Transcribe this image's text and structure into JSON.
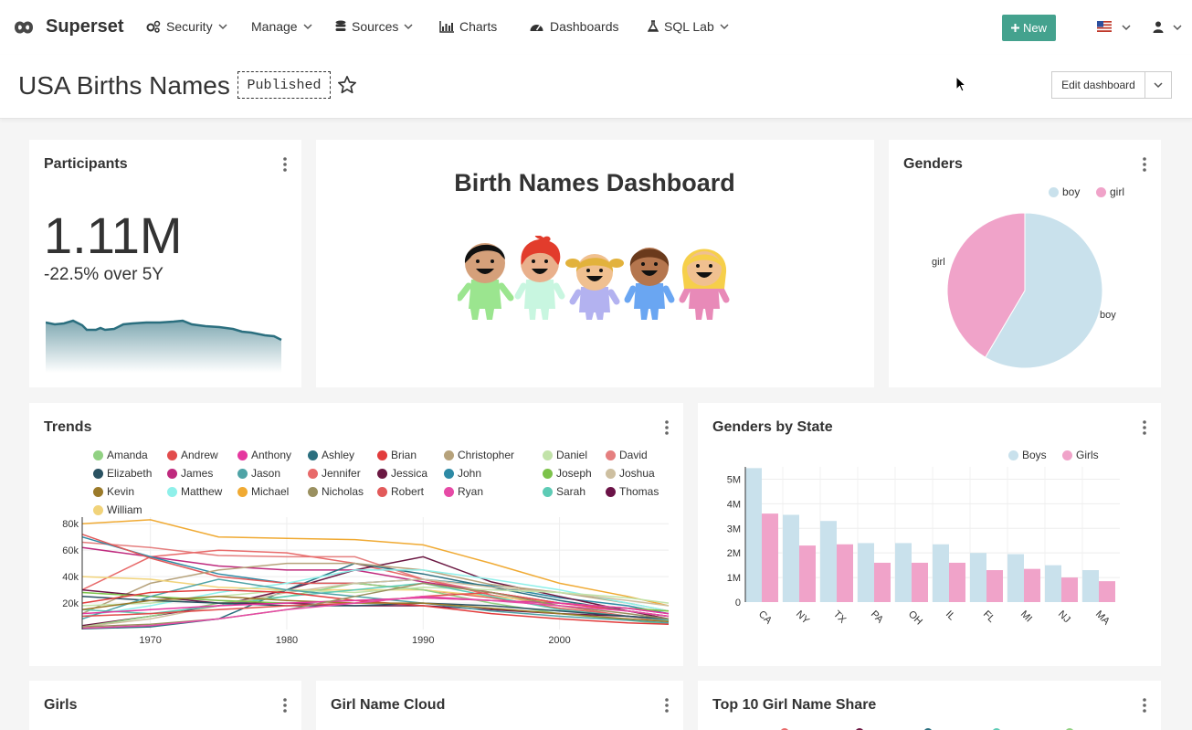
{
  "navbar": {
    "brand": "Superset",
    "items": [
      {
        "label": "Security",
        "icon": "gears-icon",
        "dropdown": true
      },
      {
        "label": "Manage",
        "icon": "",
        "dropdown": true
      },
      {
        "label": "Sources",
        "icon": "database-icon",
        "dropdown": true
      },
      {
        "label": "Charts",
        "icon": "bar-chart-icon",
        "dropdown": false
      },
      {
        "label": "Dashboards",
        "icon": "dashboard-icon",
        "dropdown": false
      },
      {
        "label": "SQL Lab",
        "icon": "flask-icon",
        "dropdown": true
      }
    ],
    "new_label": "New",
    "accent": "#44a28e"
  },
  "header": {
    "title": "USA Births Names",
    "status": "Published",
    "edit_label": "Edit dashboard"
  },
  "participants": {
    "title": "Participants",
    "value": "1.11M",
    "delta": "-22.5% over 5Y"
  },
  "markdown": {
    "title": "Birth Names Dashboard"
  },
  "genders": {
    "title": "Genders",
    "legend": [
      {
        "label": "boy",
        "color": "#c9e1ec"
      },
      {
        "label": "girl",
        "color": "#f0a3c9"
      }
    ],
    "slice_labels": {
      "boy": "boy",
      "girl": "girl"
    }
  },
  "trends": {
    "title": "Trends",
    "legend": [
      {
        "label": "Amanda",
        "color": "#91d183"
      },
      {
        "label": "Andrew",
        "color": "#e24c4c"
      },
      {
        "label": "Anthony",
        "color": "#e5379f"
      },
      {
        "label": "Ashley",
        "color": "#2b6f7f"
      },
      {
        "label": "Brian",
        "color": "#e23c3c"
      },
      {
        "label": "Christopher",
        "color": "#b6a27b"
      },
      {
        "label": "Daniel",
        "color": "#c2e3a9"
      },
      {
        "label": "David",
        "color": "#e57f7f"
      },
      {
        "label": "Elizabeth",
        "color": "#2a5262"
      },
      {
        "label": "James",
        "color": "#bf2a7e"
      },
      {
        "label": "Jason",
        "color": "#4fa3a6"
      },
      {
        "label": "Jennifer",
        "color": "#e86a6a"
      },
      {
        "label": "Jessica",
        "color": "#6b1842"
      },
      {
        "label": "John",
        "color": "#2d8aa5"
      },
      {
        "label": "Joseph",
        "color": "#7cc24a"
      },
      {
        "label": "Joshua",
        "color": "#cdbfa0"
      },
      {
        "label": "Kevin",
        "color": "#9b7a2a"
      },
      {
        "label": "Matthew",
        "color": "#8ff0ea"
      },
      {
        "label": "Michael",
        "color": "#f0aa33"
      },
      {
        "label": "Nicholas",
        "color": "#9a9060"
      },
      {
        "label": "Robert",
        "color": "#e25a5a"
      },
      {
        "label": "Ryan",
        "color": "#e64aa6"
      },
      {
        "label": "Sarah",
        "color": "#5dcbb5"
      },
      {
        "label": "Thomas",
        "color": "#6b1347"
      },
      {
        "label": "William",
        "color": "#f1d37a"
      }
    ],
    "y_ticks": [
      "80k",
      "60k",
      "40k",
      "20k"
    ],
    "x_ticks": [
      "1970",
      "1980",
      "1990",
      "2000"
    ]
  },
  "genders_by_state": {
    "title": "Genders by State",
    "legend": [
      {
        "label": "Boys",
        "color": "#c9e1ec"
      },
      {
        "label": "Girls",
        "color": "#f0a3c9"
      }
    ],
    "y_ticks": [
      "5M",
      "4M",
      "3M",
      "2M",
      "1M",
      "0"
    ]
  },
  "chart_data": [
    {
      "type": "pie",
      "title": "Genders",
      "categories": [
        "boy",
        "girl"
      ],
      "values": [
        58.5,
        41.5
      ]
    },
    {
      "type": "bar",
      "title": "Genders by State",
      "categories": [
        "CA",
        "NY",
        "TX",
        "PA",
        "OH",
        "IL",
        "FL",
        "MI",
        "NJ",
        "MA"
      ],
      "series": [
        {
          "name": "Boys",
          "values": [
            5.45,
            3.55,
            3.3,
            2.4,
            2.4,
            2.35,
            2.0,
            1.95,
            1.5,
            1.3
          ]
        },
        {
          "name": "Girls",
          "values": [
            3.6,
            2.3,
            2.35,
            1.6,
            1.6,
            1.6,
            1.3,
            1.35,
            1.0,
            0.85
          ]
        }
      ],
      "ylabel": "",
      "xlabel": "",
      "ylim": [
        0,
        5.5
      ]
    },
    {
      "type": "line",
      "title": "Trends",
      "x": [
        1965,
        1970,
        1975,
        1980,
        1985,
        1990,
        1995,
        2000,
        2005,
        2008
      ],
      "ylim": [
        0,
        85000
      ],
      "series": [
        {
          "name": "Michael",
          "values": [
            80000,
            83000,
            70000,
            69000,
            68000,
            64000,
            50000,
            35000,
            25000,
            18000
          ]
        },
        {
          "name": "David",
          "values": [
            66000,
            62000,
            56000,
            55000,
            55000,
            38000,
            28000,
            20000,
            14000,
            10000
          ]
        },
        {
          "name": "Jennifer",
          "values": [
            30000,
            55000,
            60000,
            58000,
            50000,
            38000,
            26000,
            18000,
            10000,
            6000
          ]
        },
        {
          "name": "James",
          "values": [
            62000,
            55000,
            48000,
            45000,
            45000,
            36000,
            28000,
            20000,
            16000,
            12000
          ]
        },
        {
          "name": "John",
          "values": [
            70000,
            55000,
            42000,
            35000,
            35000,
            38000,
            33000,
            24000,
            18000,
            12000
          ]
        },
        {
          "name": "Jessica",
          "values": [
            3000,
            10000,
            18000,
            30000,
            45000,
            55000,
            36000,
            25000,
            14000,
            8000
          ]
        },
        {
          "name": "Ashley",
          "values": [
            500,
            2000,
            8000,
            30000,
            50000,
            42000,
            32000,
            22000,
            14000,
            10000
          ]
        },
        {
          "name": "Robert",
          "values": [
            72000,
            54000,
            40000,
            35000,
            35000,
            30000,
            24000,
            16000,
            10000,
            6000
          ]
        },
        {
          "name": "Christopher",
          "values": [
            12000,
            35000,
            45000,
            50000,
            50000,
            45000,
            34000,
            28000,
            20000,
            14000
          ]
        },
        {
          "name": "Matthew",
          "values": [
            10000,
            18000,
            28000,
            35000,
            45000,
            45000,
            38000,
            30000,
            20000,
            14000
          ]
        },
        {
          "name": "William",
          "values": [
            40000,
            38000,
            32000,
            30000,
            30000,
            30000,
            25000,
            20000,
            16000,
            14000
          ]
        },
        {
          "name": "Amanda",
          "values": [
            2000,
            10000,
            20000,
            25000,
            35000,
            30000,
            20000,
            12000,
            7000,
            4000
          ]
        },
        {
          "name": "Joshua",
          "values": [
            2000,
            8000,
            18000,
            28000,
            35000,
            38000,
            32000,
            28000,
            22000,
            18000
          ]
        },
        {
          "name": "Daniel",
          "values": [
            18000,
            20000,
            25000,
            30000,
            28000,
            32000,
            30000,
            28000,
            24000,
            20000
          ]
        },
        {
          "name": "Sarah",
          "values": [
            15000,
            12000,
            18000,
            25000,
            30000,
            35000,
            25000,
            15000,
            10000,
            7000
          ]
        },
        {
          "name": "Thomas",
          "values": [
            30000,
            25000,
            20000,
            20000,
            18000,
            18000,
            15000,
            12000,
            10000,
            8000
          ]
        },
        {
          "name": "Elizabeth",
          "values": [
            25000,
            22000,
            20000,
            18000,
            18000,
            20000,
            18000,
            14000,
            10000,
            8000
          ]
        },
        {
          "name": "Joseph",
          "values": [
            28000,
            25000,
            22000,
            20000,
            22000,
            24000,
            22000,
            20000,
            16000,
            14000
          ]
        },
        {
          "name": "Jason",
          "values": [
            8000,
            25000,
            38000,
            30000,
            25000,
            20000,
            14000,
            10000,
            7000,
            5000
          ]
        },
        {
          "name": "Brian",
          "values": [
            20000,
            28000,
            30000,
            28000,
            22000,
            18000,
            12000,
            8000,
            5000,
            4000
          ]
        },
        {
          "name": "Kevin",
          "values": [
            15000,
            22000,
            25000,
            22000,
            20000,
            20000,
            16000,
            12000,
            8000,
            6000
          ]
        },
        {
          "name": "Andrew",
          "values": [
            10000,
            12000,
            15000,
            18000,
            20000,
            25000,
            28000,
            20000,
            14000,
            10000
          ]
        },
        {
          "name": "Anthony",
          "values": [
            12000,
            15000,
            18000,
            20000,
            22000,
            24000,
            22000,
            20000,
            16000,
            12000
          ]
        },
        {
          "name": "Nicholas",
          "values": [
            2000,
            4000,
            8000,
            15000,
            25000,
            35000,
            28000,
            18000,
            12000,
            8000
          ]
        },
        {
          "name": "Ryan",
          "values": [
            1000,
            3000,
            8000,
            15000,
            20000,
            25000,
            22000,
            18000,
            14000,
            10000
          ]
        }
      ]
    }
  ],
  "bottom": {
    "girls_title": "Girls",
    "cloud_title": "Girl Name Cloud",
    "share_title": "Top 10 Girl Name Share"
  }
}
